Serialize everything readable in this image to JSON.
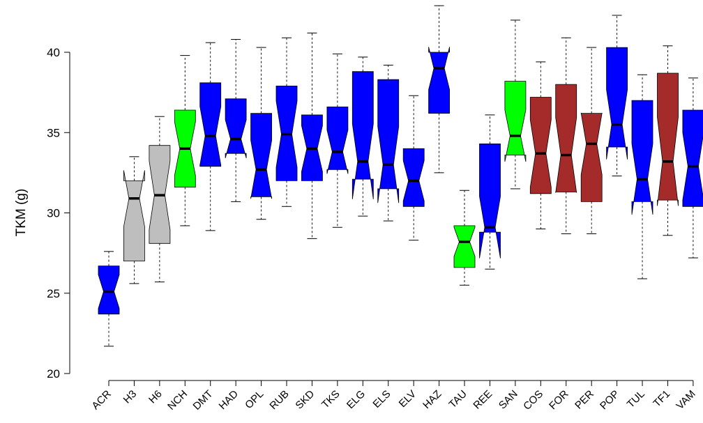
{
  "chart_data": {
    "type": "boxplot",
    "notched": true,
    "title": "",
    "xlabel": "",
    "ylabel": "TKM (g)",
    "ylim": [
      20,
      43
    ],
    "yticks": [
      20,
      25,
      30,
      35,
      40
    ],
    "categories": [
      "ACR",
      "H3",
      "H6",
      "NCH",
      "DMT",
      "HAD",
      "OPL",
      "RUB",
      "SKD",
      "TKS",
      "ELG",
      "ELS",
      "ELV",
      "HAZ",
      "TAU",
      "REE",
      "SAN",
      "COS",
      "FOR",
      "PER",
      "POP",
      "TUL",
      "TF1",
      "VAM"
    ],
    "colors": {
      "blue": "#0000ff",
      "gray": "#bebebe",
      "green": "#00ff00",
      "brown": "#a52a2a"
    },
    "boxes": [
      {
        "color": "blue",
        "min": 21.7,
        "q1": 23.7,
        "median": 25.1,
        "q3": 26.7,
        "max": 27.6
      },
      {
        "color": "gray",
        "min": 25.6,
        "q1": 27.0,
        "median": 30.9,
        "q3": 32.0,
        "max": 33.5
      },
      {
        "color": "gray",
        "min": 25.7,
        "q1": 28.1,
        "median": 31.1,
        "q3": 34.2,
        "max": 36.0
      },
      {
        "color": "green",
        "min": 29.2,
        "q1": 31.6,
        "median": 34.0,
        "q3": 36.4,
        "max": 39.8
      },
      {
        "color": "blue",
        "min": 28.9,
        "q1": 32.9,
        "median": 34.8,
        "q3": 38.1,
        "max": 40.6
      },
      {
        "color": "blue",
        "min": 30.7,
        "q1": 33.7,
        "median": 34.6,
        "q3": 37.1,
        "max": 40.8
      },
      {
        "color": "blue",
        "min": 29.6,
        "q1": 31.0,
        "median": 32.7,
        "q3": 36.2,
        "max": 40.3
      },
      {
        "color": "blue",
        "min": 30.4,
        "q1": 32.0,
        "median": 34.9,
        "q3": 37.9,
        "max": 40.9
      },
      {
        "color": "blue",
        "min": 28.4,
        "q1": 32.0,
        "median": 34.0,
        "q3": 36.1,
        "max": 41.2
      },
      {
        "color": "blue",
        "min": 29.1,
        "q1": 32.7,
        "median": 33.8,
        "q3": 36.6,
        "max": 39.9
      },
      {
        "color": "blue",
        "min": 29.8,
        "q1": 32.1,
        "median": 33.2,
        "q3": 38.8,
        "max": 39.7
      },
      {
        "color": "blue",
        "min": 29.5,
        "q1": 31.5,
        "median": 33.0,
        "q3": 38.3,
        "max": 39.2
      },
      {
        "color": "blue",
        "min": 28.3,
        "q1": 30.4,
        "median": 32.0,
        "q3": 34.0,
        "max": 37.3
      },
      {
        "color": "blue",
        "min": 32.5,
        "q1": 36.2,
        "median": 39.0,
        "q3": 40.0,
        "max": 42.9
      },
      {
        "color": "green",
        "min": 25.5,
        "q1": 26.6,
        "median": 28.2,
        "q3": 29.2,
        "max": 31.4
      },
      {
        "color": "blue",
        "min": 26.5,
        "q1": 28.8,
        "median": 29.1,
        "q3": 34.3,
        "max": 36.1
      },
      {
        "color": "green",
        "min": 31.5,
        "q1": 33.6,
        "median": 34.8,
        "q3": 38.2,
        "max": 42.0
      },
      {
        "color": "brown",
        "min": 29.0,
        "q1": 31.2,
        "median": 33.7,
        "q3": 37.2,
        "max": 39.4
      },
      {
        "color": "brown",
        "min": 28.7,
        "q1": 31.3,
        "median": 33.6,
        "q3": 38.0,
        "max": 40.9
      },
      {
        "color": "brown",
        "min": 28.7,
        "q1": 30.7,
        "median": 34.3,
        "q3": 36.2,
        "max": 40.3
      },
      {
        "color": "blue",
        "min": 32.3,
        "q1": 34.1,
        "median": 35.5,
        "q3": 40.3,
        "max": 42.3
      },
      {
        "color": "blue",
        "min": 25.9,
        "q1": 30.7,
        "median": 32.1,
        "q3": 37.0,
        "max": 38.6
      },
      {
        "color": "brown",
        "min": 28.6,
        "q1": 30.8,
        "median": 33.2,
        "q3": 38.7,
        "max": 40.4
      },
      {
        "color": "blue",
        "min": 27.2,
        "q1": 30.4,
        "median": 32.9,
        "q3": 36.4,
        "max": 38.4
      }
    ]
  }
}
